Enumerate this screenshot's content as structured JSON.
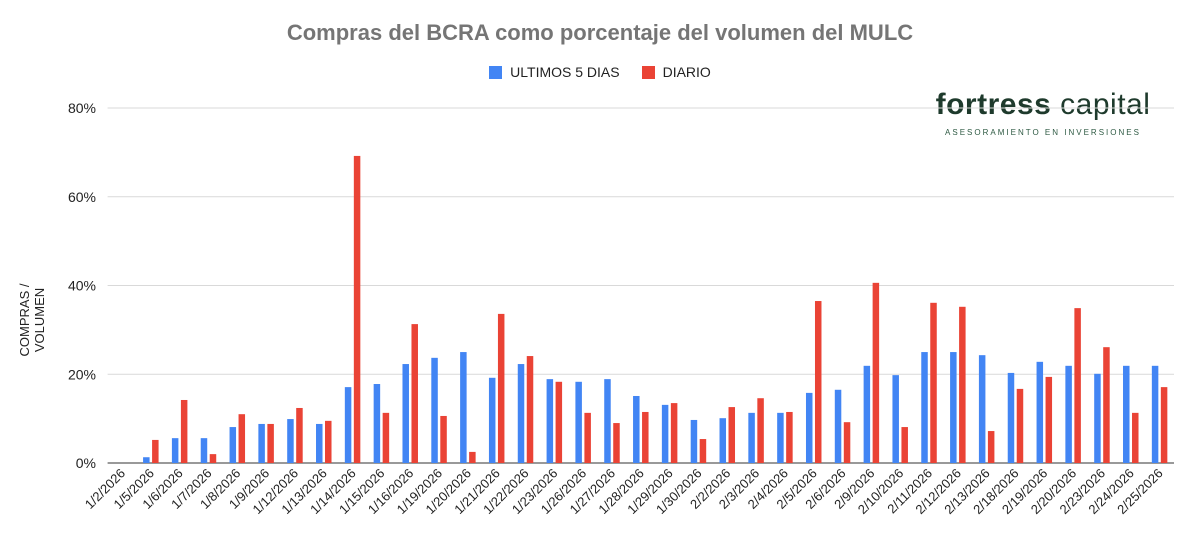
{
  "chart_data": {
    "type": "bar",
    "title": "Compras del BCRA como porcentaje del volumen del MULC",
    "xlabel": "",
    "ylabel": "COMPRAS / VOLUMEN",
    "ylim": [
      0,
      80
    ],
    "yticks": [
      "0%",
      "20%",
      "40%",
      "60%",
      "80%"
    ],
    "ytick_values": [
      0,
      20,
      40,
      60,
      80
    ],
    "grid": true,
    "legend_position": "top-center",
    "categories": [
      "1/2/2026",
      "1/5/2026",
      "1/6/2026",
      "1/7/2026",
      "1/8/2026",
      "1/9/2026",
      "1/12/2026",
      "1/13/2026",
      "1/14/2026",
      "1/15/2026",
      "1/16/2026",
      "1/19/2026",
      "1/20/2026",
      "1/21/2026",
      "1/22/2026",
      "1/23/2026",
      "1/26/2026",
      "1/27/2026",
      "1/28/2026",
      "1/29/2026",
      "1/30/2026",
      "2/2/2026",
      "2/3/2026",
      "2/4/2026",
      "2/5/2026",
      "2/6/2026",
      "2/9/2026",
      "2/10/2026",
      "2/11/2026",
      "2/12/2026",
      "2/13/2026",
      "2/18/2026",
      "2/19/2026",
      "2/20/2026",
      "2/23/2026",
      "2/24/2026",
      "2/25/2026"
    ],
    "series": [
      {
        "name": "ULTIMOS 5 DIAS",
        "color": "#4285f4",
        "values": [
          0,
          1.3,
          5.6,
          5.6,
          8.1,
          8.8,
          9.9,
          8.8,
          17.1,
          17.8,
          22.3,
          23.7,
          25.0,
          19.2,
          22.3,
          18.9,
          18.3,
          18.9,
          15.1,
          13.1,
          9.7,
          10.1,
          11.3,
          11.3,
          15.8,
          16.5,
          21.9,
          19.8,
          25.0,
          25.0,
          24.3,
          20.3,
          22.8,
          21.9,
          20.1,
          21.9,
          21.9
        ]
      },
      {
        "name": "DIARIO",
        "color": "#ea4335",
        "values": [
          0,
          5.2,
          14.2,
          2.0,
          11.0,
          8.8,
          12.4,
          9.5,
          69.2,
          11.3,
          31.3,
          10.6,
          2.5,
          33.6,
          24.1,
          18.3,
          11.3,
          9.0,
          11.5,
          13.5,
          5.4,
          12.6,
          14.6,
          11.5,
          36.5,
          9.2,
          40.6,
          8.1,
          36.1,
          35.2,
          7.2,
          16.7,
          19.4,
          34.9,
          26.1,
          11.3,
          17.1
        ]
      }
    ]
  },
  "logo": {
    "name_bold": "fortress",
    "name_light": "capital",
    "tagline": "ASESORAMIENTO EN INVERSIONES"
  }
}
